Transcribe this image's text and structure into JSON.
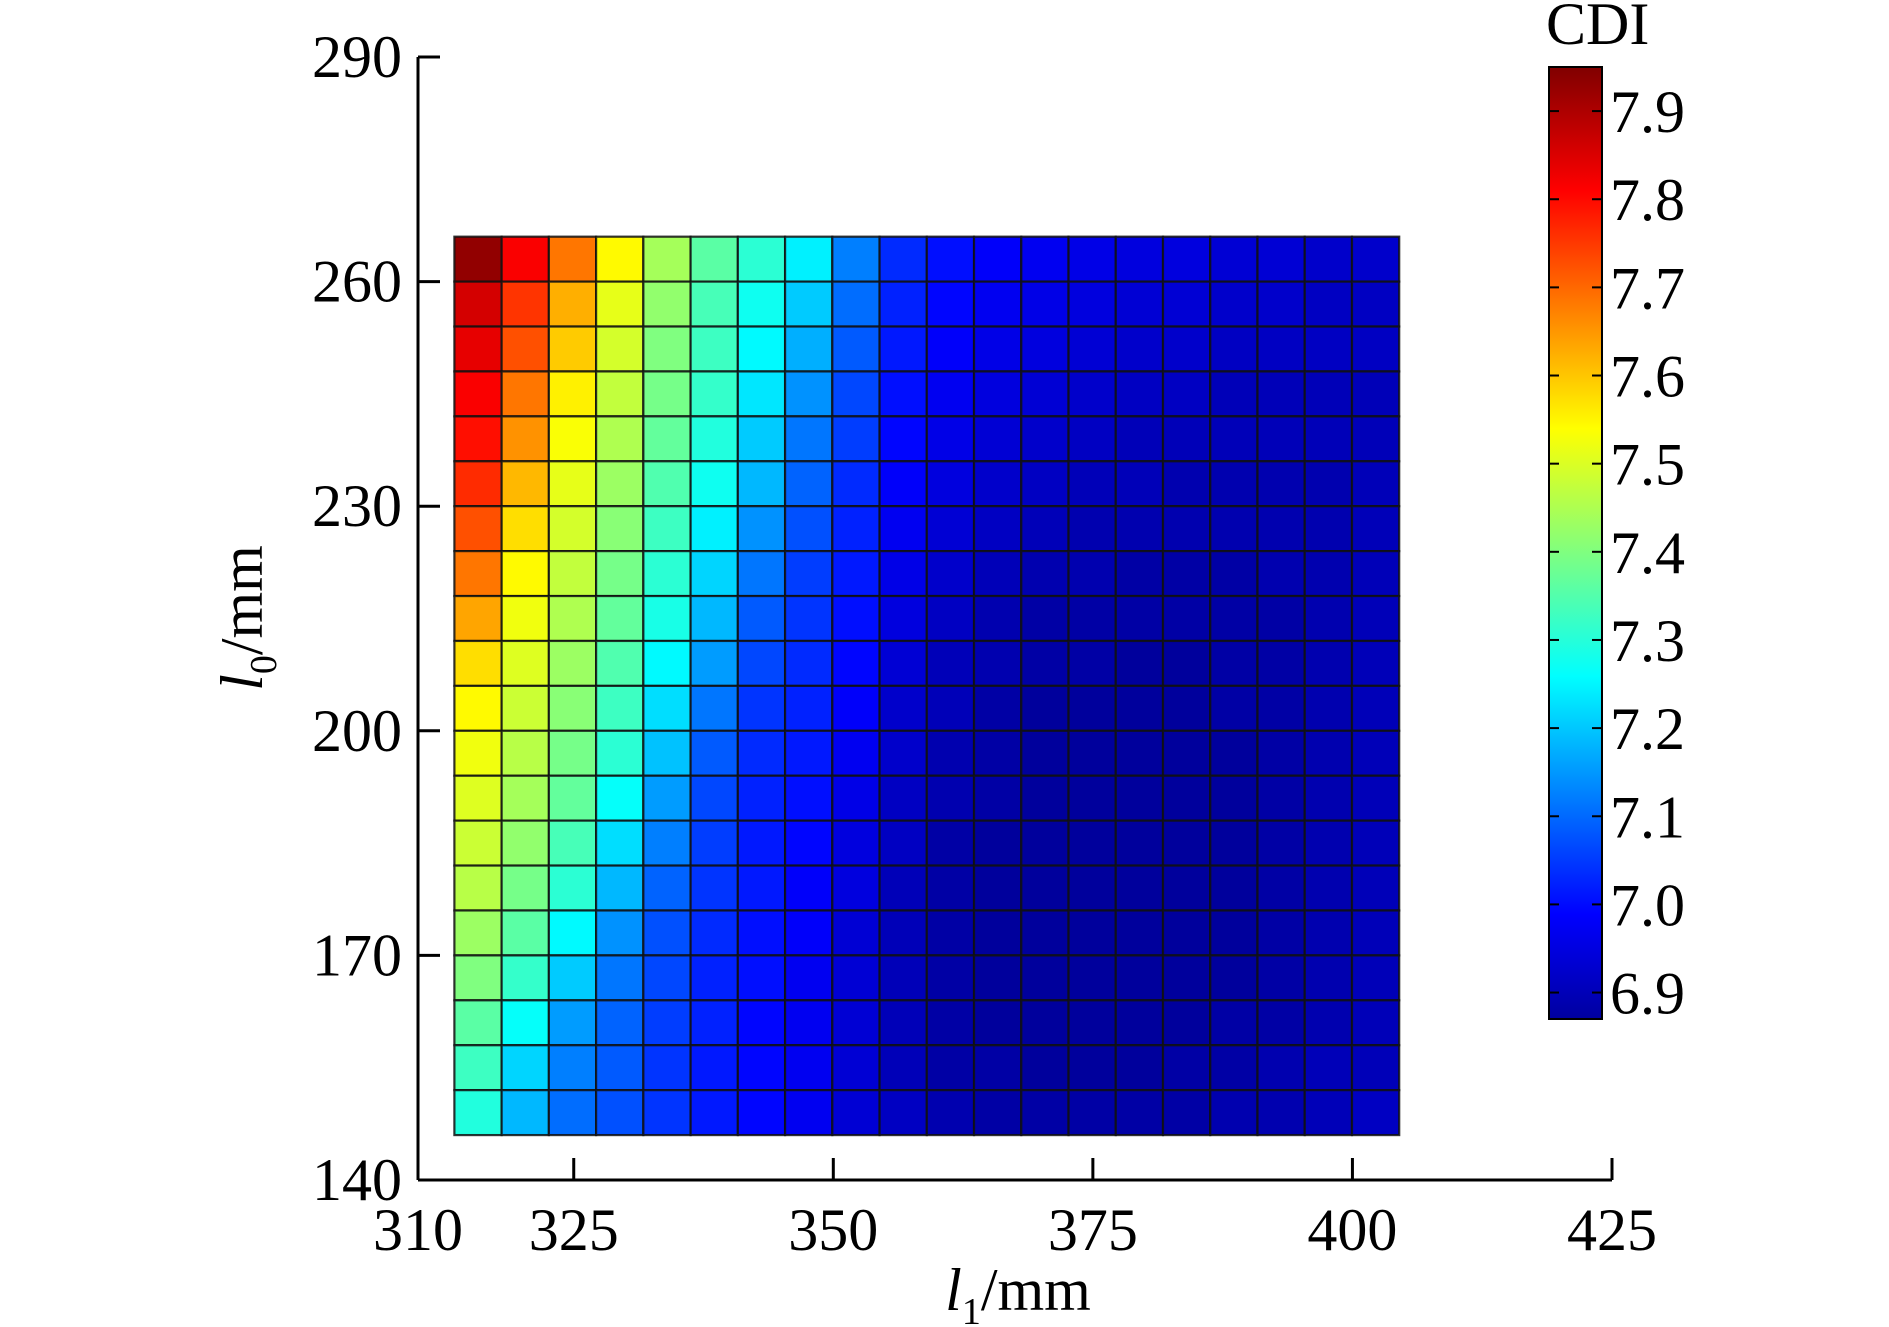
{
  "chart_data": {
    "type": "heatmap",
    "x_axis": {
      "label_symbol": "l",
      "label_subscript": "1",
      "label_unit": "/mm",
      "range": [
        310,
        425
      ],
      "ticks": [
        "310",
        "325",
        "350",
        "375",
        "400",
        "425"
      ]
    },
    "y_axis": {
      "label_symbol": "l",
      "label_subscript": "0",
      "label_unit": "/mm",
      "range": [
        140,
        290
      ],
      "ticks": [
        "140",
        "170",
        "200",
        "230",
        "260",
        "290"
      ]
    },
    "colorbar": {
      "title": "CDI",
      "range": [
        6.87,
        7.95
      ],
      "ticks": [
        "7.9",
        "7.8",
        "7.7",
        "7.6",
        "7.5",
        "7.4",
        "7.3",
        "7.2",
        "7.1",
        "7.0",
        "6.9"
      ],
      "colormap": "jet"
    },
    "grid": {
      "cols": 20,
      "rows": 20,
      "x_extent": [
        313.5,
        404.5
      ],
      "y_extent": [
        146,
        266
      ],
      "x_centers": [
        315.78,
        320.33,
        324.88,
        329.43,
        333.98,
        338.53,
        343.08,
        347.63,
        352.18,
        356.73,
        361.28,
        365.83,
        370.38,
        374.93,
        379.48,
        384.03,
        388.58,
        393.13,
        397.68,
        402.23
      ],
      "y_centers": [
        263,
        257,
        251,
        245,
        239,
        233,
        227,
        221,
        215,
        209,
        203,
        197,
        191,
        185,
        179,
        173,
        167,
        161,
        155,
        149
      ],
      "values": [
        [
          7.93,
          7.82,
          7.69,
          7.55,
          7.45,
          7.37,
          7.32,
          7.26,
          7.14,
          7.05,
          7.02,
          7.0,
          6.99,
          6.98,
          6.97,
          6.97,
          6.96,
          6.96,
          6.95,
          6.95
        ],
        [
          7.86,
          7.76,
          7.63,
          7.52,
          7.43,
          7.35,
          7.29,
          7.22,
          7.12,
          7.04,
          7.01,
          6.99,
          6.98,
          6.97,
          6.96,
          6.96,
          6.95,
          6.95,
          6.94,
          6.94
        ],
        [
          7.84,
          7.73,
          7.6,
          7.5,
          7.41,
          7.34,
          7.27,
          7.19,
          7.1,
          7.03,
          7.0,
          6.98,
          6.97,
          6.96,
          6.95,
          6.95,
          6.94,
          6.94,
          6.94,
          6.94
        ],
        [
          7.82,
          7.69,
          7.56,
          7.48,
          7.4,
          7.33,
          7.25,
          7.16,
          7.08,
          7.02,
          6.99,
          6.97,
          6.96,
          6.95,
          6.94,
          6.94,
          6.93,
          6.93,
          6.93,
          6.93
        ],
        [
          7.8,
          7.66,
          7.54,
          7.46,
          7.38,
          7.31,
          7.22,
          7.13,
          7.07,
          7.01,
          6.98,
          6.96,
          6.95,
          6.94,
          6.93,
          6.93,
          6.93,
          6.93,
          6.93,
          6.93
        ],
        [
          7.77,
          7.62,
          7.52,
          7.44,
          7.36,
          7.29,
          7.2,
          7.11,
          7.05,
          7.0,
          6.97,
          6.95,
          6.94,
          6.93,
          6.93,
          6.92,
          6.92,
          6.92,
          6.92,
          6.93
        ],
        [
          7.73,
          7.58,
          7.5,
          7.42,
          7.34,
          7.26,
          7.16,
          7.09,
          7.04,
          6.99,
          6.96,
          6.94,
          6.93,
          6.92,
          6.92,
          6.92,
          6.92,
          6.92,
          6.92,
          6.93
        ],
        [
          7.69,
          7.55,
          7.48,
          7.4,
          7.32,
          7.23,
          7.13,
          7.07,
          7.03,
          6.98,
          6.95,
          6.93,
          6.92,
          6.92,
          6.91,
          6.91,
          6.91,
          6.92,
          6.92,
          6.93
        ],
        [
          7.64,
          7.53,
          7.46,
          7.38,
          7.3,
          7.2,
          7.1,
          7.06,
          7.02,
          6.97,
          6.94,
          6.92,
          6.91,
          6.91,
          6.91,
          6.91,
          6.91,
          6.91,
          6.92,
          6.93
        ],
        [
          7.58,
          7.51,
          7.44,
          7.36,
          7.27,
          7.17,
          7.08,
          7.05,
          7.01,
          6.96,
          6.93,
          6.92,
          6.91,
          6.91,
          6.9,
          6.9,
          6.91,
          6.91,
          6.92,
          6.93
        ],
        [
          7.55,
          7.49,
          7.42,
          7.34,
          7.24,
          7.13,
          7.06,
          7.04,
          7.0,
          6.95,
          6.93,
          6.91,
          6.9,
          6.9,
          6.9,
          6.9,
          6.91,
          6.91,
          6.92,
          6.93
        ],
        [
          7.53,
          7.47,
          7.4,
          7.32,
          7.21,
          7.1,
          7.05,
          7.03,
          6.99,
          6.95,
          6.92,
          6.91,
          6.9,
          6.9,
          6.9,
          6.9,
          6.9,
          6.91,
          6.92,
          6.93
        ],
        [
          7.51,
          7.45,
          7.38,
          7.28,
          7.17,
          7.08,
          7.04,
          7.02,
          6.98,
          6.94,
          6.92,
          6.91,
          6.9,
          6.9,
          6.9,
          6.9,
          6.9,
          6.91,
          6.92,
          6.93
        ],
        [
          7.49,
          7.43,
          7.35,
          7.24,
          7.14,
          7.07,
          7.03,
          7.01,
          6.97,
          6.94,
          6.91,
          6.9,
          6.9,
          6.9,
          6.9,
          6.9,
          6.9,
          6.91,
          6.92,
          6.93
        ],
        [
          7.47,
          7.4,
          7.32,
          7.2,
          7.11,
          7.06,
          7.03,
          7.0,
          6.97,
          6.93,
          6.91,
          6.9,
          6.9,
          6.9,
          6.9,
          6.9,
          6.9,
          6.91,
          6.92,
          6.93
        ],
        [
          7.44,
          7.37,
          7.27,
          7.16,
          7.09,
          7.05,
          7.02,
          7.0,
          6.96,
          6.93,
          6.91,
          6.9,
          6.9,
          6.9,
          6.9,
          6.9,
          6.9,
          6.91,
          6.92,
          6.93
        ],
        [
          7.41,
          7.33,
          7.22,
          7.13,
          7.08,
          7.04,
          7.02,
          6.99,
          6.96,
          6.93,
          6.91,
          6.9,
          6.9,
          6.9,
          6.9,
          6.9,
          6.9,
          6.91,
          6.92,
          6.93
        ],
        [
          7.37,
          7.28,
          7.17,
          7.11,
          7.07,
          7.04,
          7.01,
          6.99,
          6.96,
          6.93,
          6.91,
          6.9,
          6.9,
          6.9,
          6.9,
          6.9,
          6.91,
          6.91,
          6.92,
          6.93
        ],
        [
          7.34,
          7.23,
          7.14,
          7.1,
          7.06,
          7.03,
          7.01,
          6.99,
          6.96,
          6.93,
          6.91,
          6.91,
          6.9,
          6.9,
          6.9,
          6.91,
          6.91,
          6.92,
          6.93,
          6.93
        ],
        [
          7.31,
          7.2,
          7.12,
          7.09,
          7.06,
          7.03,
          7.01,
          6.99,
          6.96,
          6.94,
          6.92,
          6.91,
          6.91,
          6.91,
          6.91,
          6.91,
          6.92,
          6.92,
          6.93,
          6.94
        ]
      ]
    }
  }
}
